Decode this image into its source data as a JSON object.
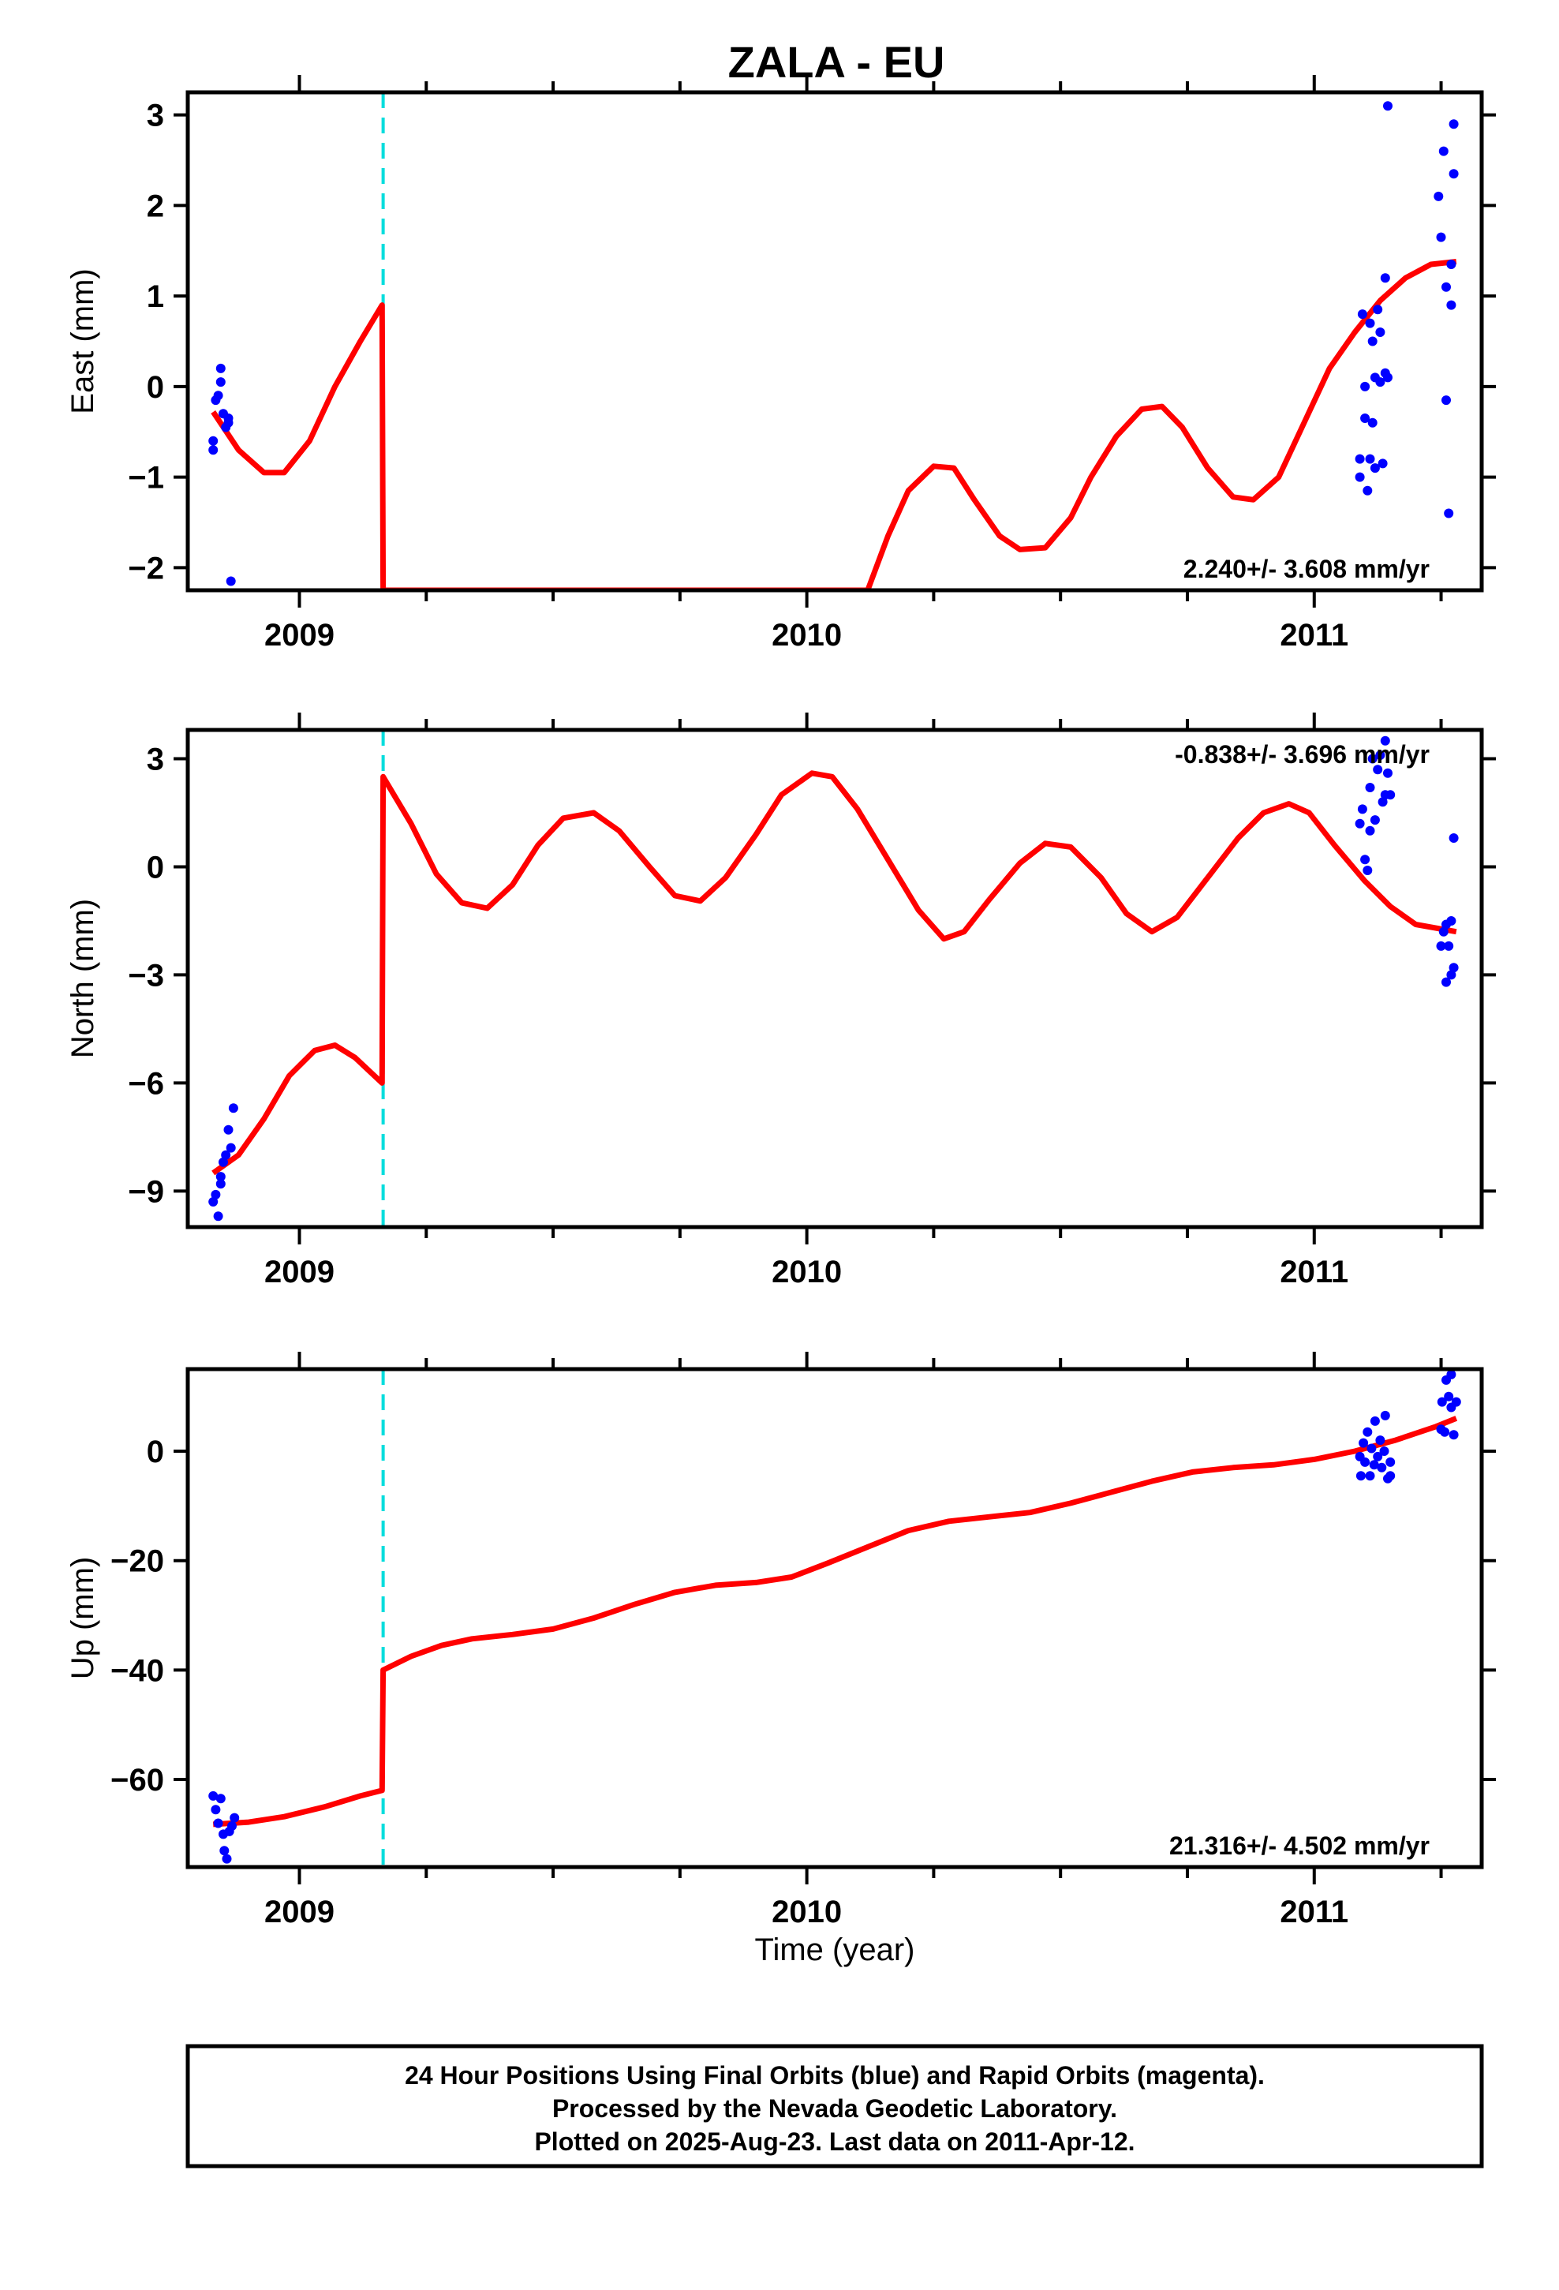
{
  "title": "ZALA - EU",
  "x_axis_label": "Time (year)",
  "footer": {
    "line1": "24 Hour Positions Using Final Orbits (blue) and Rapid Orbits (magenta).",
    "line2": "Processed by the Nevada Geodetic Laboratory.",
    "line3": "Plotted on 2025-Aug-23. Last data on 2011-Apr-12."
  },
  "colors": {
    "points": "#0000ff",
    "model": "#ff0000",
    "event_line": "#00dddd",
    "frame": "#000000"
  },
  "chart_data": [
    {
      "type": "scatter",
      "component": "east",
      "ylabel": "East (mm)",
      "xlim": [
        2008.78,
        2011.33
      ],
      "ylim": [
        -2.25,
        3.25
      ],
      "yticks": [
        -2,
        -1,
        0,
        1,
        2,
        3
      ],
      "ytick_labels": [
        "−2",
        "−1",
        "0",
        "1",
        "2",
        "3"
      ],
      "xticks": [
        2009,
        2010,
        2011
      ],
      "xtick_labels": [
        "2009",
        "2010",
        "2011"
      ],
      "rate_text": "2.240+/- 3.608 mm/yr",
      "rate_position": "bottom-right",
      "event_line_x": 2009.165,
      "points": [
        [
          2008.83,
          -0.7
        ],
        [
          2008.83,
          -0.6
        ],
        [
          2008.835,
          -0.15
        ],
        [
          2008.84,
          -0.1
        ],
        [
          2008.845,
          0.2
        ],
        [
          2008.845,
          0.05
        ],
        [
          2008.85,
          -0.3
        ],
        [
          2008.855,
          -0.45
        ],
        [
          2008.86,
          -0.35
        ],
        [
          2008.86,
          -0.4
        ],
        [
          2008.865,
          -2.15
        ],
        [
          2011.09,
          -1.0
        ],
        [
          2011.09,
          -0.8
        ],
        [
          2011.095,
          0.8
        ],
        [
          2011.1,
          0.0
        ],
        [
          2011.1,
          -0.35
        ],
        [
          2011.105,
          -1.15
        ],
        [
          2011.11,
          -0.8
        ],
        [
          2011.11,
          0.7
        ],
        [
          2011.115,
          0.5
        ],
        [
          2011.115,
          -0.4
        ],
        [
          2011.12,
          -0.9
        ],
        [
          2011.12,
          0.1
        ],
        [
          2011.125,
          0.85
        ],
        [
          2011.13,
          0.6
        ],
        [
          2011.13,
          0.05
        ],
        [
          2011.135,
          -0.85
        ],
        [
          2011.14,
          0.15
        ],
        [
          2011.14,
          1.2
        ],
        [
          2011.145,
          0.1
        ],
        [
          2011.145,
          3.1
        ],
        [
          2011.245,
          2.1
        ],
        [
          2011.25,
          1.65
        ],
        [
          2011.255,
          2.6
        ],
        [
          2011.26,
          1.1
        ],
        [
          2011.26,
          -0.15
        ],
        [
          2011.265,
          -1.4
        ],
        [
          2011.27,
          1.35
        ],
        [
          2011.27,
          0.9
        ],
        [
          2011.275,
          2.35
        ],
        [
          2011.275,
          2.9
        ]
      ],
      "model": [
        [
          2008.83,
          -0.28
        ],
        [
          2008.88,
          -0.7
        ],
        [
          2008.93,
          -0.95
        ],
        [
          2008.97,
          -0.95
        ],
        [
          2009.02,
          -0.6
        ],
        [
          2009.07,
          0.0
        ],
        [
          2009.12,
          0.5
        ],
        [
          2009.163,
          0.9
        ],
        [
          2009.165,
          -2.25
        ],
        [
          2010.12,
          -2.25
        ],
        [
          2010.16,
          -1.65
        ],
        [
          2010.2,
          -1.15
        ],
        [
          2010.25,
          -0.88
        ],
        [
          2010.29,
          -0.9
        ],
        [
          2010.33,
          -1.25
        ],
        [
          2010.38,
          -1.65
        ],
        [
          2010.42,
          -1.8
        ],
        [
          2010.47,
          -1.78
        ],
        [
          2010.52,
          -1.45
        ],
        [
          2010.56,
          -1.0
        ],
        [
          2010.61,
          -0.55
        ],
        [
          2010.66,
          -0.25
        ],
        [
          2010.7,
          -0.22
        ],
        [
          2010.74,
          -0.45
        ],
        [
          2010.79,
          -0.9
        ],
        [
          2010.84,
          -1.22
        ],
        [
          2010.88,
          -1.25
        ],
        [
          2010.93,
          -1.0
        ],
        [
          2010.98,
          -0.4
        ],
        [
          2011.03,
          0.2
        ],
        [
          2011.08,
          0.6
        ],
        [
          2011.13,
          0.95
        ],
        [
          2011.18,
          1.2
        ],
        [
          2011.23,
          1.35
        ],
        [
          2011.28,
          1.38
        ]
      ]
    },
    {
      "type": "scatter",
      "component": "north",
      "ylabel": "North (mm)",
      "xlim": [
        2008.78,
        2011.33
      ],
      "ylim": [
        -10.0,
        3.8
      ],
      "yticks": [
        -9,
        -6,
        -3,
        0,
        3
      ],
      "ytick_labels": [
        "−9",
        "−6",
        "−3",
        "0",
        "3"
      ],
      "xticks": [
        2009,
        2010,
        2011
      ],
      "xtick_labels": [
        "2009",
        "2010",
        "2011"
      ],
      "rate_text": "-0.838+/- 3.696 mm/yr",
      "rate_position": "top-right",
      "event_line_x": 2009.165,
      "points": [
        [
          2008.83,
          -9.3
        ],
        [
          2008.835,
          -9.1
        ],
        [
          2008.84,
          -9.7
        ],
        [
          2008.845,
          -8.6
        ],
        [
          2008.85,
          -8.2
        ],
        [
          2008.855,
          -8.0
        ],
        [
          2008.86,
          -7.3
        ],
        [
          2008.865,
          -7.8
        ],
        [
          2008.87,
          -6.7
        ],
        [
          2008.845,
          -8.8
        ],
        [
          2011.09,
          1.2
        ],
        [
          2011.095,
          1.6
        ],
        [
          2011.1,
          0.2
        ],
        [
          2011.105,
          -0.1
        ],
        [
          2011.11,
          1.0
        ],
        [
          2011.11,
          2.2
        ],
        [
          2011.115,
          3.0
        ],
        [
          2011.12,
          1.3
        ],
        [
          2011.125,
          2.7
        ],
        [
          2011.13,
          3.1
        ],
        [
          2011.135,
          1.8
        ],
        [
          2011.14,
          2.0
        ],
        [
          2011.14,
          3.5
        ],
        [
          2011.145,
          2.6
        ],
        [
          2011.15,
          2.0
        ],
        [
          2011.25,
          -2.2
        ],
        [
          2011.255,
          -1.8
        ],
        [
          2011.26,
          -3.2
        ],
        [
          2011.26,
          -1.6
        ],
        [
          2011.265,
          -2.2
        ],
        [
          2011.27,
          -3.0
        ],
        [
          2011.27,
          -1.5
        ],
        [
          2011.275,
          -2.8
        ],
        [
          2011.275,
          0.8
        ]
      ],
      "model": [
        [
          2008.83,
          -8.5
        ],
        [
          2008.88,
          -8.0
        ],
        [
          2008.93,
          -7.0
        ],
        [
          2008.98,
          -5.8
        ],
        [
          2009.03,
          -5.1
        ],
        [
          2009.07,
          -4.95
        ],
        [
          2009.11,
          -5.3
        ],
        [
          2009.163,
          -6.0
        ],
        [
          2009.165,
          2.5
        ],
        [
          2009.22,
          1.2
        ],
        [
          2009.27,
          -0.2
        ],
        [
          2009.32,
          -1.0
        ],
        [
          2009.37,
          -1.15
        ],
        [
          2009.42,
          -0.5
        ],
        [
          2009.47,
          0.6
        ],
        [
          2009.52,
          1.35
        ],
        [
          2009.58,
          1.5
        ],
        [
          2009.63,
          1.0
        ],
        [
          2009.69,
          0.0
        ],
        [
          2009.74,
          -0.8
        ],
        [
          2009.79,
          -0.95
        ],
        [
          2009.84,
          -0.3
        ],
        [
          2009.9,
          0.9
        ],
        [
          2009.95,
          2.0
        ],
        [
          2010.01,
          2.6
        ],
        [
          2010.05,
          2.5
        ],
        [
          2010.1,
          1.6
        ],
        [
          2010.16,
          0.2
        ],
        [
          2010.22,
          -1.2
        ],
        [
          2010.27,
          -2.0
        ],
        [
          2010.31,
          -1.8
        ],
        [
          2010.36,
          -0.9
        ],
        [
          2010.42,
          0.1
        ],
        [
          2010.47,
          0.65
        ],
        [
          2010.52,
          0.55
        ],
        [
          2010.58,
          -0.3
        ],
        [
          2010.63,
          -1.3
        ],
        [
          2010.68,
          -1.8
        ],
        [
          2010.73,
          -1.4
        ],
        [
          2010.79,
          -0.3
        ],
        [
          2010.85,
          0.8
        ],
        [
          2010.9,
          1.5
        ],
        [
          2010.95,
          1.75
        ],
        [
          2010.99,
          1.5
        ],
        [
          2011.04,
          0.6
        ],
        [
          2011.1,
          -0.4
        ],
        [
          2011.15,
          -1.1
        ],
        [
          2011.2,
          -1.6
        ],
        [
          2011.28,
          -1.8
        ]
      ]
    },
    {
      "type": "scatter",
      "component": "up",
      "ylabel": "Up (mm)",
      "xlim": [
        2008.78,
        2011.33
      ],
      "ylim": [
        -76.0,
        15.0
      ],
      "yticks": [
        -60,
        -40,
        -20,
        0
      ],
      "ytick_labels": [
        "−60",
        "−40",
        "−20",
        "0"
      ],
      "xticks": [
        2009,
        2010,
        2011
      ],
      "xtick_labels": [
        "2009",
        "2010",
        "2011"
      ],
      "rate_text": "21.316+/- 4.502 mm/yr",
      "rate_position": "bottom-right",
      "event_line_x": 2009.165,
      "points": [
        [
          2008.83,
          -63.0
        ],
        [
          2008.835,
          -65.5
        ],
        [
          2008.84,
          -68.0
        ],
        [
          2008.845,
          -63.5
        ],
        [
          2008.85,
          -70.0
        ],
        [
          2008.852,
          -73.0
        ],
        [
          2008.857,
          -74.5
        ],
        [
          2008.862,
          -69.5
        ],
        [
          2008.867,
          -68.5
        ],
        [
          2008.872,
          -67.0
        ],
        [
          2011.09,
          -1.0
        ],
        [
          2011.092,
          -4.5
        ],
        [
          2011.097,
          1.5
        ],
        [
          2011.1,
          -2.0
        ],
        [
          2011.105,
          3.5
        ],
        [
          2011.11,
          -4.5
        ],
        [
          2011.113,
          0.5
        ],
        [
          2011.118,
          -2.5
        ],
        [
          2011.12,
          5.5
        ],
        [
          2011.125,
          -1.0
        ],
        [
          2011.13,
          2.0
        ],
        [
          2011.133,
          -3.0
        ],
        [
          2011.138,
          0.0
        ],
        [
          2011.14,
          6.5
        ],
        [
          2011.145,
          -5.0
        ],
        [
          2011.15,
          -4.5
        ],
        [
          2011.15,
          -2.0
        ],
        [
          2011.25,
          4.0
        ],
        [
          2011.252,
          9.0
        ],
        [
          2011.257,
          3.5
        ],
        [
          2011.26,
          13.0
        ],
        [
          2011.265,
          10.0
        ],
        [
          2011.27,
          14.0
        ],
        [
          2011.27,
          8.0
        ],
        [
          2011.275,
          3.0
        ],
        [
          2011.28,
          9.0
        ]
      ],
      "model": [
        [
          2008.83,
          -68.2
        ],
        [
          2008.9,
          -67.8
        ],
        [
          2008.97,
          -66.8
        ],
        [
          2009.05,
          -65.0
        ],
        [
          2009.12,
          -63.0
        ],
        [
          2009.163,
          -62.0
        ],
        [
          2009.165,
          -40.0
        ],
        [
          2009.22,
          -37.5
        ],
        [
          2009.28,
          -35.5
        ],
        [
          2009.34,
          -34.3
        ],
        [
          2009.42,
          -33.5
        ],
        [
          2009.5,
          -32.5
        ],
        [
          2009.58,
          -30.5
        ],
        [
          2009.66,
          -28.0
        ],
        [
          2009.74,
          -25.8
        ],
        [
          2009.82,
          -24.5
        ],
        [
          2009.9,
          -24.0
        ],
        [
          2009.97,
          -23.0
        ],
        [
          2010.04,
          -20.5
        ],
        [
          2010.12,
          -17.5
        ],
        [
          2010.2,
          -14.5
        ],
        [
          2010.28,
          -12.8
        ],
        [
          2010.36,
          -12.0
        ],
        [
          2010.44,
          -11.2
        ],
        [
          2010.52,
          -9.5
        ],
        [
          2010.6,
          -7.5
        ],
        [
          2010.68,
          -5.5
        ],
        [
          2010.76,
          -3.8
        ],
        [
          2010.84,
          -3.0
        ],
        [
          2010.92,
          -2.5
        ],
        [
          2011.0,
          -1.5
        ],
        [
          2011.08,
          0.0
        ],
        [
          2011.16,
          2.0
        ],
        [
          2011.24,
          4.5
        ],
        [
          2011.28,
          6.0
        ]
      ]
    }
  ]
}
